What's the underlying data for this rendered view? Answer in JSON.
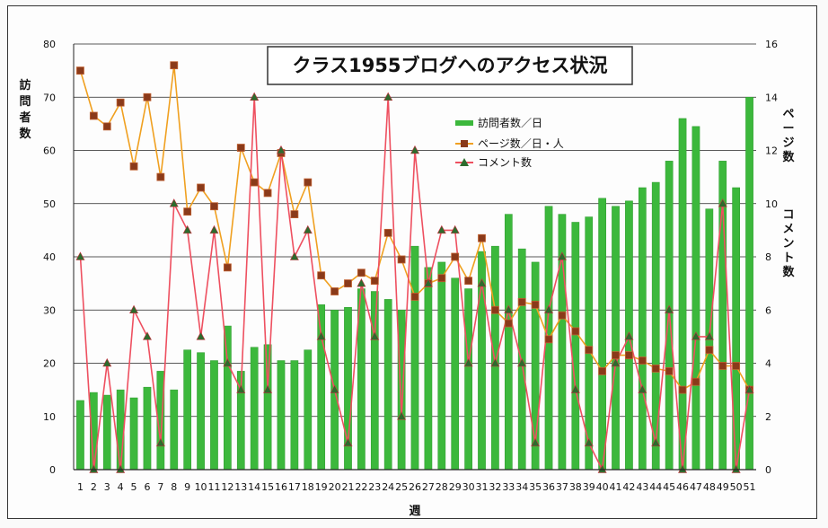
{
  "chart_data": {
    "type": "bar+line",
    "title": "クラス1955ブログへのアクセス状況",
    "xlabel": "週",
    "ylabel_left": "訪問者数",
    "ylabel_right_top": "ページ数",
    "ylabel_right_bottom": "コメント数",
    "ylim_left": [
      0,
      80
    ],
    "ylim_right": [
      0,
      16
    ],
    "yticks_left": [
      0,
      10,
      20,
      30,
      40,
      50,
      60,
      70,
      80
    ],
    "yticks_right": [
      0,
      2,
      4,
      6,
      8,
      10,
      12,
      14,
      16
    ],
    "grid": true,
    "legend_position": "upper-middle-right",
    "categories": [
      "1",
      "2",
      "3",
      "4",
      "5",
      "6",
      "7",
      "8",
      "9",
      "10",
      "11",
      "12",
      "13",
      "14",
      "15",
      "16",
      "17",
      "18",
      "19",
      "20",
      "21",
      "22",
      "23",
      "24",
      "25",
      "26",
      "27",
      "28",
      "29",
      "30",
      "31",
      "32",
      "33",
      "34",
      "35",
      "36",
      "37",
      "38",
      "39",
      "40",
      "41",
      "42",
      "43",
      "44",
      "45",
      "46",
      "47",
      "48",
      "49",
      "50",
      "51"
    ],
    "series": [
      {
        "name": "訪問者数／日",
        "kind": "bar",
        "axis": "left",
        "color": "#3cb83c",
        "values": [
          13,
          14.5,
          14,
          15,
          13.5,
          15.5,
          18.5,
          15,
          22.5,
          22,
          20.5,
          27,
          18.5,
          23,
          23.5,
          20.5,
          20.5,
          22.5,
          31,
          30,
          30.5,
          34,
          33.5,
          32,
          30,
          42,
          38,
          39,
          36,
          34,
          41,
          42,
          48,
          41.5,
          39,
          49.5,
          48,
          46.5,
          47.5,
          51,
          49.5,
          50.5,
          53,
          54,
          58,
          66,
          64.5,
          49,
          58,
          53,
          70
        ]
      },
      {
        "name": "ページ数／日・人",
        "kind": "line",
        "axis": "right",
        "color": "#f0a020",
        "marker": "square",
        "marker_color": "#8a3a1a",
        "values": [
          15,
          13.3,
          12.9,
          13.8,
          11.4,
          14,
          11,
          15.2,
          9.7,
          10.6,
          9.9,
          7.6,
          12.1,
          10.8,
          10.4,
          11.9,
          9.6,
          10.8,
          7.3,
          6.7,
          7,
          7.4,
          7.1,
          8.9,
          7.9,
          6.5,
          7,
          7.2,
          8,
          7.1,
          8.7,
          6,
          5.5,
          6.3,
          6.2,
          4.9,
          5.8,
          5.2,
          4.5,
          3.7,
          4.3,
          4.3,
          4.1,
          3.8,
          3.7,
          3,
          3.3,
          4.5,
          3.9,
          3.9,
          3
        ]
      },
      {
        "name": "コメント数",
        "kind": "line",
        "axis": "right",
        "color": "#ee5060",
        "marker": "triangle",
        "marker_color": "#2d6b2d",
        "values": [
          8,
          0,
          4,
          0,
          6,
          5,
          1,
          10,
          9,
          5,
          9,
          4,
          3,
          14,
          3,
          12,
          8,
          9,
          5,
          3,
          1,
          7,
          5,
          14,
          2,
          12,
          7,
          9,
          9,
          4,
          7,
          4,
          6,
          4,
          1,
          6,
          8,
          3,
          1,
          0,
          4,
          5,
          3,
          1,
          6,
          0,
          5,
          5,
          10,
          0,
          3
        ]
      }
    ]
  }
}
